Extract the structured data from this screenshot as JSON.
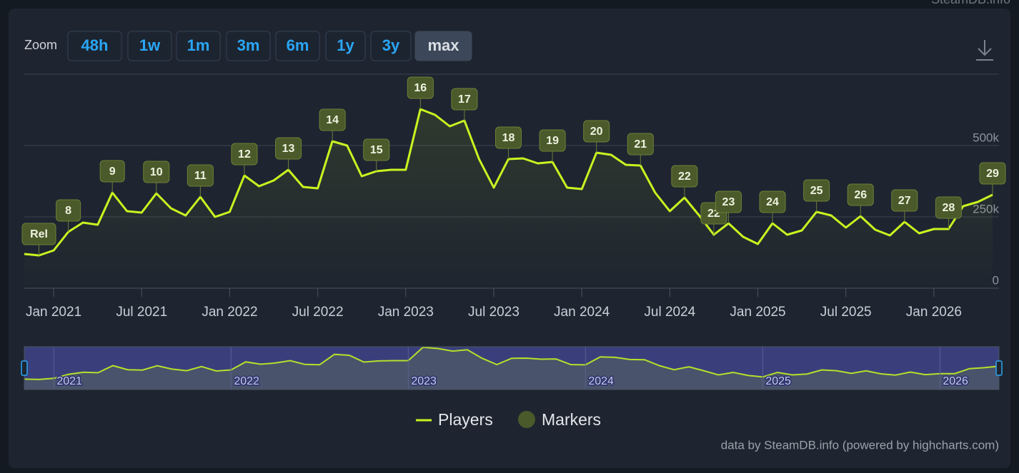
{
  "chart_data": {
    "type": "line",
    "source_badge": "SteamDB.info",
    "zoom_label": "Zoom",
    "zoom_buttons": [
      {
        "label": "48h"
      },
      {
        "label": "1w"
      },
      {
        "label": "1m"
      },
      {
        "label": "3m"
      },
      {
        "label": "6m"
      },
      {
        "label": "1y"
      },
      {
        "label": "3y"
      },
      {
        "label": "max",
        "active": true
      }
    ],
    "x": [
      "2020-11",
      "2020-12",
      "2021-01",
      "2021-02",
      "2021-03",
      "2021-04",
      "2021-05",
      "2021-06",
      "2021-07",
      "2021-08",
      "2021-09",
      "2021-10",
      "2021-11",
      "2021-12",
      "2022-01",
      "2022-02",
      "2022-03",
      "2022-04",
      "2022-05",
      "2022-06",
      "2022-07",
      "2022-08",
      "2022-09",
      "2022-10",
      "2022-11",
      "2022-12",
      "2023-01",
      "2023-02",
      "2023-03",
      "2023-04",
      "2023-05",
      "2023-06",
      "2023-07",
      "2023-08",
      "2023-09",
      "2023-10",
      "2023-11",
      "2023-12",
      "2024-01",
      "2024-02",
      "2024-03",
      "2024-04",
      "2024-05",
      "2024-06",
      "2024-07",
      "2024-08",
      "2024-09",
      "2024-10",
      "2024-11",
      "2024-12",
      "2025-01",
      "2025-02",
      "2025-03",
      "2025-04",
      "2025-05",
      "2025-06",
      "2025-07",
      "2025-08",
      "2025-09",
      "2025-10",
      "2025-11",
      "2025-12",
      "2026-01",
      "2026-02",
      "2026-03",
      "2026-04",
      "2026-05"
    ],
    "series": [
      {
        "name": "Players",
        "color": "#c8f520",
        "values": [
          120000,
          115000,
          132500,
          197500,
          230000,
          222500,
          335000,
          270000,
          265000,
          332500,
          280000,
          255000,
          320000,
          250000,
          267500,
          395000,
          357500,
          377500,
          415000,
          355000,
          350000,
          515000,
          500000,
          392500,
          410000,
          415000,
          415000,
          627500,
          607500,
          567500,
          587500,
          452500,
          352500,
          452500,
          455000,
          437500,
          442500,
          352500,
          347500,
          475000,
          467500,
          432500,
          430000,
          335000,
          270000,
          317500,
          255000,
          187500,
          227500,
          180000,
          155000,
          227500,
          187500,
          202500,
          267500,
          255000,
          212500,
          252500,
          205000,
          185000,
          232500,
          192500,
          207500,
          207500,
          287500,
          302500,
          327500
        ]
      }
    ],
    "markers": {
      "name": "Markers",
      "color": "#4a5a2a",
      "items": [
        {
          "label": "Rel",
          "x": "2020-12"
        },
        {
          "label": "8",
          "x": "2021-02"
        },
        {
          "label": "9",
          "x": "2021-05"
        },
        {
          "label": "10",
          "x": "2021-08"
        },
        {
          "label": "11",
          "x": "2021-11"
        },
        {
          "label": "12",
          "x": "2022-02"
        },
        {
          "label": "13",
          "x": "2022-05"
        },
        {
          "label": "14",
          "x": "2022-08"
        },
        {
          "label": "15",
          "x": "2022-11"
        },
        {
          "label": "16",
          "x": "2023-02"
        },
        {
          "label": "17",
          "x": "2023-05"
        },
        {
          "label": "18",
          "x": "2023-08"
        },
        {
          "label": "19",
          "x": "2023-11"
        },
        {
          "label": "20",
          "x": "2024-02"
        },
        {
          "label": "21",
          "x": "2024-05"
        },
        {
          "label": "22",
          "x": "2024-08"
        },
        {
          "label": "22",
          "x": "2024-10"
        },
        {
          "label": "23",
          "x": "2024-11"
        },
        {
          "label": "24",
          "x": "2025-02"
        },
        {
          "label": "25",
          "x": "2025-05"
        },
        {
          "label": "26",
          "x": "2025-08"
        },
        {
          "label": "27",
          "x": "2025-11"
        },
        {
          "label": "28",
          "x": "2026-02"
        },
        {
          "label": "29",
          "x": "2026-05"
        }
      ]
    },
    "xlim": [
      "2020-11",
      "2026-05"
    ],
    "xticks": [
      {
        "value": "2021-01",
        "label": "Jan 2021"
      },
      {
        "value": "2021-07",
        "label": "Jul 2021"
      },
      {
        "value": "2022-01",
        "label": "Jan 2022"
      },
      {
        "value": "2022-07",
        "label": "Jul 2022"
      },
      {
        "value": "2023-01",
        "label": "Jan 2023"
      },
      {
        "value": "2023-07",
        "label": "Jul 2023"
      },
      {
        "value": "2024-01",
        "label": "Jan 2024"
      },
      {
        "value": "2024-07",
        "label": "Jul 2024"
      },
      {
        "value": "2025-01",
        "label": "Jan 2025"
      },
      {
        "value": "2025-07",
        "label": "Jul 2025"
      },
      {
        "value": "2026-01",
        "label": "Jan 2026"
      }
    ],
    "ylim": [
      0,
      750000
    ],
    "yticks": [
      0,
      {
        "value": 250000,
        "label": "250k"
      },
      {
        "value": 500000,
        "label": "500k"
      }
    ],
    "grid": true,
    "navigator_ticks": [
      {
        "value": "2021-01",
        "label": "2021"
      },
      {
        "value": "2022-01",
        "label": "2022"
      },
      {
        "value": "2023-01",
        "label": "2023"
      },
      {
        "value": "2024-01",
        "label": "2024"
      },
      {
        "value": "2025-01",
        "label": "2025"
      },
      {
        "value": "2026-01",
        "label": "2026"
      }
    ],
    "credits": "data by SteamDB.info (powered by highcharts.com)"
  }
}
